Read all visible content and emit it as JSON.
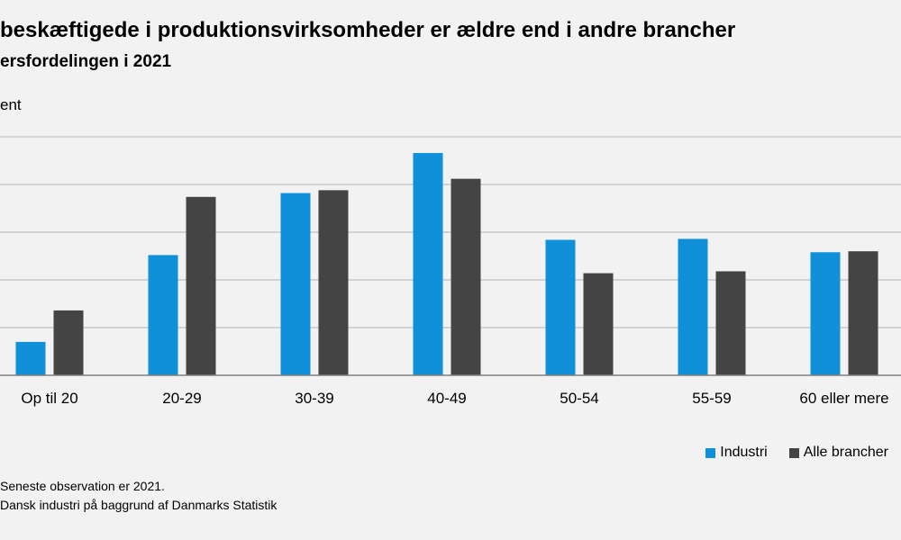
{
  "header": {
    "title": "beskæftigede i produktionsvirksomheder er ældre end i andre brancher",
    "subtitle": "ersfordelingen i 2021",
    "ylabel": "ent"
  },
  "footer": {
    "note": "Seneste observation er 2021.",
    "source": "Dansk industri på baggrund af Danmarks Statistik"
  },
  "colors": {
    "industri": "#1090d8",
    "alle": "#444444",
    "grid": "#c8c8c8",
    "axis": "#808080"
  },
  "chart_data": {
    "type": "bar",
    "categories": [
      "Op til 20",
      "20-29",
      "30-39",
      "40-49",
      "50-54",
      "55-59",
      "60 eller mere"
    ],
    "series": [
      {
        "name": "Industri",
        "values": [
          3.5,
          12.6,
          19.1,
          23.3,
          14.2,
          14.3,
          12.9
        ]
      },
      {
        "name": "Alle brancher",
        "values": [
          6.8,
          18.7,
          19.4,
          20.6,
          10.7,
          10.9,
          13.0
        ]
      }
    ],
    "ylim": [
      0,
      25
    ],
    "yticks": [
      0,
      5,
      10,
      15,
      20,
      25
    ],
    "grid": true,
    "legend": "bottom-right"
  }
}
